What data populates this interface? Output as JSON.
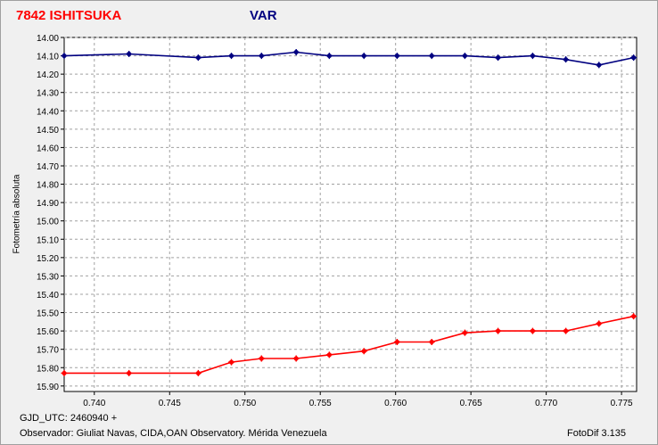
{
  "window": {
    "title_left": "7842 ISHITSUKA",
    "title_right": "VAR",
    "footer_gjd": "GJD_UTC: 2460940 +",
    "footer_observer": "Observador: Giuliat Navas, CIDA,OAN Observatory. Mérida Venezuela",
    "footer_app": "FotoDif 3.135"
  },
  "chart_data": {
    "type": "line",
    "title": "7842 ISHITSUKA",
    "subtitle": "VAR",
    "xlabel": "",
    "ylabel": "Fotometría absoluta",
    "xlim": [
      0.738,
      0.776
    ],
    "ylim": [
      14.0,
      15.93
    ],
    "y_inverted": true,
    "grid": true,
    "x_ticks": [
      "0.740",
      "0.745",
      "0.750",
      "0.755",
      "0.760",
      "0.765",
      "0.770",
      "0.775"
    ],
    "x_tick_values": [
      0.74,
      0.745,
      0.75,
      0.755,
      0.76,
      0.765,
      0.77,
      0.775
    ],
    "y_ticks": [
      "14.00",
      "14.10",
      "14.20",
      "14.30",
      "14.40",
      "14.50",
      "14.60",
      "14.70",
      "14.80",
      "14.90",
      "15.00",
      "15.10",
      "15.20",
      "15.30",
      "15.40",
      "15.50",
      "15.60",
      "15.70",
      "15.80",
      "15.90"
    ],
    "y_tick_values": [
      14.0,
      14.1,
      14.2,
      14.3,
      14.4,
      14.5,
      14.6,
      14.7,
      14.8,
      14.9,
      15.0,
      15.1,
      15.2,
      15.3,
      15.4,
      15.5,
      15.6,
      15.7,
      15.8,
      15.9
    ],
    "x": [
      0.738,
      0.7423,
      0.7469,
      0.7491,
      0.7511,
      0.7534,
      0.7556,
      0.7579,
      0.7601,
      0.7624,
      0.7646,
      0.7668,
      0.7691,
      0.7713,
      0.7735,
      0.7758
    ],
    "series": [
      {
        "color": "#000080",
        "values": [
          14.1,
          14.09,
          14.11,
          14.1,
          14.1,
          14.08,
          14.1,
          14.1,
          14.1,
          14.1,
          14.1,
          14.11,
          14.1,
          14.12,
          14.15,
          14.11
        ]
      },
      {
        "color": "#ff0000",
        "values": [
          15.83,
          15.83,
          15.83,
          15.77,
          15.75,
          15.75,
          15.73,
          15.71,
          15.66,
          15.66,
          15.61,
          15.6,
          15.6,
          15.6,
          15.56,
          15.52
        ]
      }
    ]
  }
}
